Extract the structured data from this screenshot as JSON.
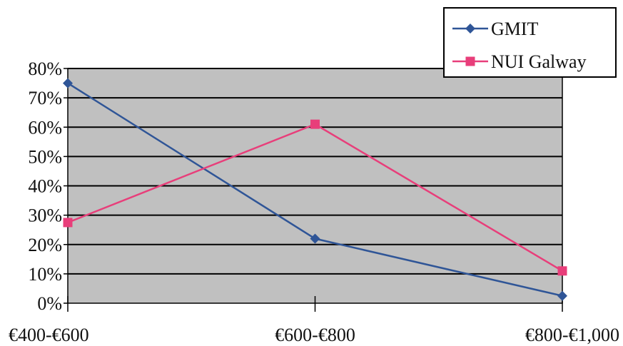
{
  "chart_data": {
    "type": "line",
    "categories": [
      "€400-€600",
      "€600-€800",
      "€800-€1,000"
    ],
    "series": [
      {
        "name": "GMIT",
        "values": [
          75,
          22,
          2.5
        ],
        "color": "#2f5597",
        "marker": "diamond"
      },
      {
        "name": "NUI Galway",
        "values": [
          27.5,
          61,
          11
        ],
        "color": "#e83e7a",
        "marker": "square"
      }
    ],
    "y_ticks": [
      "0%",
      "10%",
      "20%",
      "30%",
      "40%",
      "50%",
      "60%",
      "70%",
      "80%"
    ],
    "ylim": [
      0,
      80
    ],
    "title": "",
    "xlabel": "",
    "ylabel": "",
    "grid": true,
    "plot_background": "#c0c0c0",
    "legend_position": "top-right"
  }
}
